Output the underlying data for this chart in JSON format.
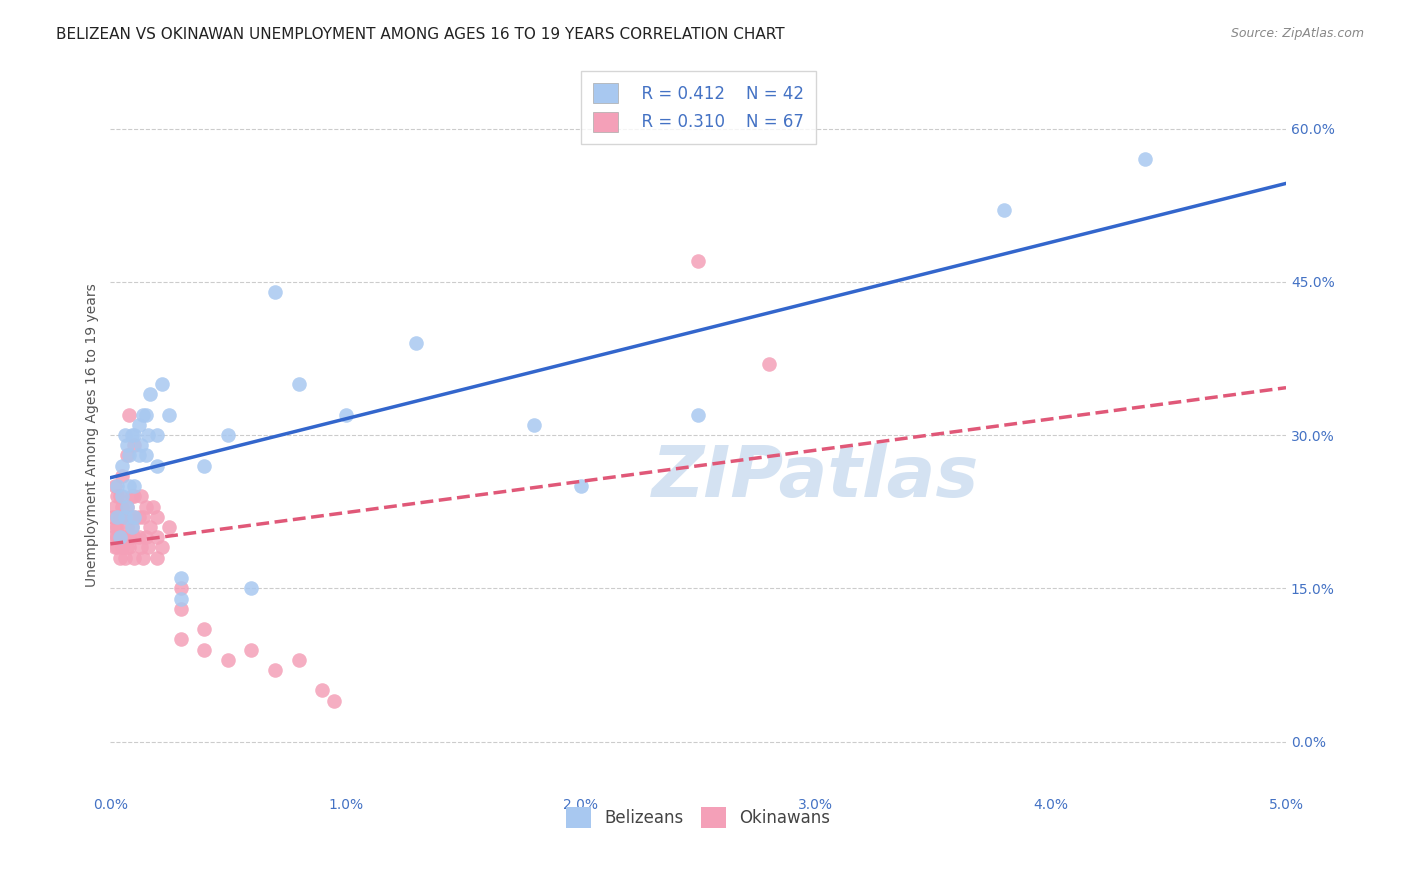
{
  "title": "BELIZEAN VS OKINAWAN UNEMPLOYMENT AMONG AGES 16 TO 19 YEARS CORRELATION CHART",
  "source": "Source: ZipAtlas.com",
  "ylabel": "Unemployment Among Ages 16 to 19 years",
  "xlim": [
    0.0,
    0.05
  ],
  "ylim": [
    -0.05,
    0.65
  ],
  "xticks": [
    0.0,
    0.01,
    0.02,
    0.03,
    0.04,
    0.05
  ],
  "xticklabels": [
    "0.0%",
    "1.0%",
    "2.0%",
    "3.0%",
    "4.0%",
    "5.0%"
  ],
  "ytick_positions": [
    0.0,
    0.15,
    0.3,
    0.45,
    0.6
  ],
  "yticklabels_right": [
    "0.0%",
    "15.0%",
    "30.0%",
    "45.0%",
    "60.0%"
  ],
  "grid_color": "#cccccc",
  "background_color": "#ffffff",
  "belizean_color": "#a8c8f0",
  "okinawan_color": "#f4a0b8",
  "belizean_line_color": "#3366cc",
  "okinawan_line_color": "#e05878",
  "legend_R_belizean": "R = 0.412",
  "legend_N_belizean": "N = 42",
  "legend_R_okinawan": "R = 0.310",
  "legend_N_okinawan": "N = 67",
  "belizean_x": [
    0.0003,
    0.0003,
    0.0004,
    0.0005,
    0.0005,
    0.0006,
    0.0006,
    0.0007,
    0.0007,
    0.0008,
    0.0008,
    0.0009,
    0.0009,
    0.001,
    0.001,
    0.001,
    0.0012,
    0.0012,
    0.0013,
    0.0014,
    0.0015,
    0.0015,
    0.0016,
    0.0017,
    0.002,
    0.002,
    0.0022,
    0.0025,
    0.003,
    0.003,
    0.004,
    0.005,
    0.006,
    0.007,
    0.008,
    0.01,
    0.013,
    0.018,
    0.02,
    0.025,
    0.038,
    0.044
  ],
  "belizean_y": [
    0.22,
    0.25,
    0.2,
    0.24,
    0.27,
    0.22,
    0.3,
    0.23,
    0.29,
    0.25,
    0.28,
    0.21,
    0.3,
    0.22,
    0.25,
    0.3,
    0.28,
    0.31,
    0.29,
    0.32,
    0.28,
    0.32,
    0.3,
    0.34,
    0.27,
    0.3,
    0.35,
    0.32,
    0.14,
    0.16,
    0.27,
    0.3,
    0.15,
    0.44,
    0.35,
    0.32,
    0.39,
    0.31,
    0.25,
    0.32,
    0.52,
    0.57
  ],
  "okinawan_x": [
    0.0001,
    0.0001,
    0.0002,
    0.0002,
    0.0002,
    0.0002,
    0.0003,
    0.0003,
    0.0003,
    0.0003,
    0.0003,
    0.0004,
    0.0004,
    0.0004,
    0.0004,
    0.0005,
    0.0005,
    0.0005,
    0.0005,
    0.0005,
    0.0006,
    0.0006,
    0.0006,
    0.0007,
    0.0007,
    0.0007,
    0.0007,
    0.0008,
    0.0008,
    0.0008,
    0.0008,
    0.0009,
    0.0009,
    0.001,
    0.001,
    0.001,
    0.001,
    0.001,
    0.0012,
    0.0012,
    0.0013,
    0.0013,
    0.0014,
    0.0014,
    0.0015,
    0.0015,
    0.0016,
    0.0017,
    0.0018,
    0.002,
    0.002,
    0.002,
    0.0022,
    0.0025,
    0.003,
    0.003,
    0.003,
    0.004,
    0.004,
    0.005,
    0.006,
    0.007,
    0.008,
    0.009,
    0.0095,
    0.025,
    0.028
  ],
  "okinawan_y": [
    0.2,
    0.22,
    0.19,
    0.21,
    0.23,
    0.25,
    0.19,
    0.2,
    0.21,
    0.22,
    0.24,
    0.18,
    0.2,
    0.22,
    0.24,
    0.19,
    0.2,
    0.22,
    0.23,
    0.26,
    0.18,
    0.2,
    0.22,
    0.19,
    0.21,
    0.23,
    0.28,
    0.19,
    0.2,
    0.22,
    0.32,
    0.21,
    0.24,
    0.18,
    0.2,
    0.22,
    0.24,
    0.29,
    0.2,
    0.22,
    0.19,
    0.24,
    0.18,
    0.22,
    0.2,
    0.23,
    0.19,
    0.21,
    0.23,
    0.18,
    0.2,
    0.22,
    0.19,
    0.21,
    0.13,
    0.15,
    0.1,
    0.09,
    0.11,
    0.08,
    0.09,
    0.07,
    0.08,
    0.05,
    0.04,
    0.47,
    0.37
  ],
  "watermark": "ZIPatlas",
  "watermark_color": "#b8d0ea",
  "title_fontsize": 11,
  "axis_label_fontsize": 10,
  "tick_fontsize": 10,
  "legend_fontsize": 12,
  "source_fontsize": 9
}
